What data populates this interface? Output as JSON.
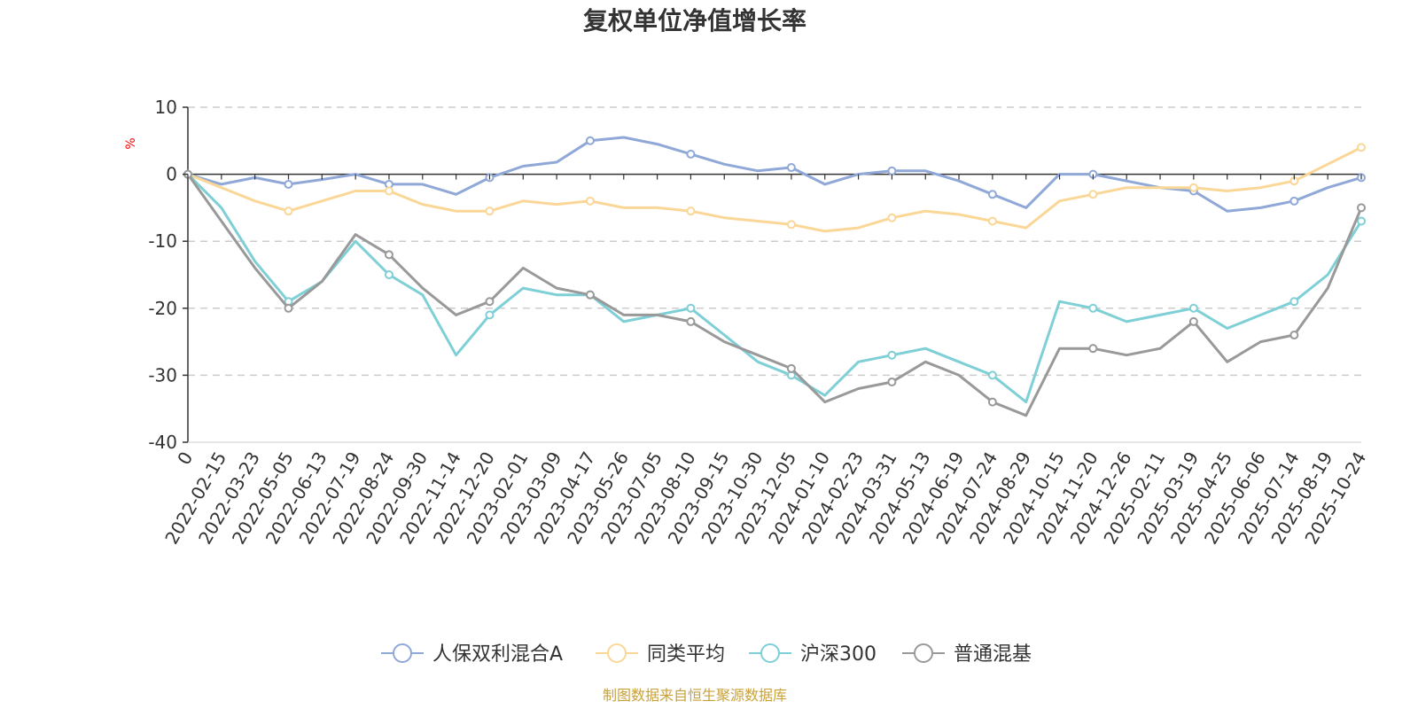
{
  "chart_data": {
    "type": "line",
    "title": "复权单位净值增长率",
    "ylabel": "%",
    "ylim": [
      -40,
      10
    ],
    "yticks": [
      10,
      0,
      -10,
      -20,
      -30,
      -40
    ],
    "grid": true,
    "legend_position": "bottom",
    "source": "制图数据来自恒生聚源数据库",
    "x": [
      "0",
      "2022-02-15",
      "2022-03-23",
      "2022-05-05",
      "2022-06-13",
      "2022-07-19",
      "2022-08-24",
      "2022-09-30",
      "2022-11-14",
      "2022-12-20",
      "2023-02-01",
      "2023-03-09",
      "2023-04-17",
      "2023-05-26",
      "2023-07-05",
      "2023-08-10",
      "2023-09-15",
      "2023-10-30",
      "2023-12-05",
      "2024-01-10",
      "2024-02-23",
      "2024-03-31",
      "2024-05-13",
      "2024-06-19",
      "2024-07-24",
      "2024-08-29",
      "2024-10-15",
      "2024-11-20",
      "2024-12-26",
      "2025-02-11",
      "2025-03-19",
      "2025-04-25",
      "2025-06-06",
      "2025-07-14",
      "2025-08-19",
      "2025-10-24"
    ],
    "series": [
      {
        "name": "人保双利混合A",
        "color": "#8fa8d8",
        "values": [
          0,
          -1.5,
          -0.5,
          -1.5,
          -0.8,
          0,
          -1.5,
          -1.5,
          -3,
          -0.5,
          1.2,
          1.8,
          5,
          5.5,
          4.5,
          3,
          1.5,
          0.5,
          1,
          -1.5,
          0,
          0.5,
          0.5,
          -1,
          -3,
          -5,
          0,
          0,
          -1,
          -2,
          -2.5,
          -5.5,
          -5,
          -4,
          -2,
          -0.5
        ]
      },
      {
        "name": "同类平均",
        "color": "#fad797",
        "values": [
          0,
          -2,
          -4,
          -5.5,
          -4,
          -2.5,
          -2.5,
          -4.5,
          -5.5,
          -5.5,
          -4,
          -4.5,
          -4,
          -5,
          -5,
          -5.5,
          -6.5,
          -7,
          -7.5,
          -8.5,
          -8,
          -6.5,
          -5.5,
          -6,
          -7,
          -8,
          -4,
          -3,
          -2,
          -2,
          -2,
          -2.5,
          -2,
          -1,
          1.5,
          4
        ]
      },
      {
        "name": "沪深300",
        "color": "#7ecfd6",
        "values": [
          0,
          -5,
          -13,
          -19,
          -16,
          -10,
          -15,
          -18,
          -27,
          -21,
          -17,
          -18,
          -18,
          -22,
          -21,
          -20,
          -24,
          -28,
          -30,
          -33,
          -28,
          -27,
          -26,
          -28,
          -30,
          -34,
          -19,
          -20,
          -22,
          -21,
          -20,
          -23,
          -21,
          -19,
          -15,
          -7
        ]
      },
      {
        "name": "普通混基",
        "color": "#999999",
        "values": [
          0,
          -7,
          -14,
          -20,
          -16,
          -9,
          -12,
          -17,
          -21,
          -19,
          -14,
          -17,
          -18,
          -21,
          -21,
          -22,
          -25,
          -27,
          -29,
          -34,
          -32,
          -31,
          -28,
          -30,
          -34,
          -36,
          -26,
          -26,
          -27,
          -26,
          -22,
          -28,
          -25,
          -24,
          -17,
          -5
        ]
      }
    ]
  }
}
